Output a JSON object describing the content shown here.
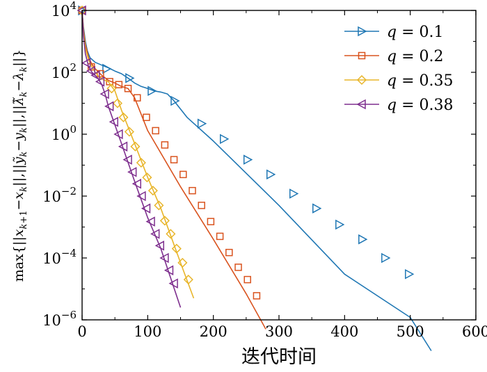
{
  "chart_data": {
    "type": "line",
    "xlabel": "迭代时间",
    "ylabel": "max{||x_{k+1}−x_k||,||ỹ_k−y_k||,||λ̃_k−λ_k||}",
    "xlim": [
      0,
      600
    ],
    "ylim_log10": [
      -6,
      4
    ],
    "yscale": "log",
    "x_ticks": [
      0,
      100,
      200,
      300,
      400,
      500,
      600
    ],
    "y_ticks": [
      {
        "base": "10",
        "exp": "4",
        "value": 10000
      },
      {
        "base": "10",
        "exp": "2",
        "value": 100
      },
      {
        "base": "10",
        "exp": "0",
        "value": 1
      },
      {
        "base": "10",
        "exp": "−2",
        "value": 0.01
      },
      {
        "base": "10",
        "exp": "−4",
        "value": 0.0001
      },
      {
        "base": "10",
        "exp": "−6",
        "value": 1e-06
      }
    ],
    "legend_placement": "top-right",
    "series": [
      {
        "name": "q = 0.1",
        "label_var": "q",
        "label_val": "0.1",
        "color": "#1f77b4",
        "marker": "triangle-right",
        "line_x": [
          0,
          2,
          5,
          8,
          12,
          20,
          30,
          40,
          50,
          60,
          70,
          80,
          90,
          100,
          110,
          120,
          130,
          140,
          160,
          200,
          300,
          400,
          500,
          532
        ],
        "line_y": [
          10000,
          3000,
          1000,
          500,
          300,
          210,
          170,
          140,
          110,
          90,
          65,
          45,
          35,
          30,
          25,
          23,
          20,
          12,
          3.5,
          0.6,
          0.005,
          3e-05,
          1.2e-06,
          1e-07
        ],
        "marker_x": [
          0,
          37,
          72,
          106,
          141,
          182,
          216,
          252,
          287,
          322,
          357,
          392,
          427,
          462,
          498
        ],
        "marker_y": [
          10000,
          130,
          65,
          25,
          12,
          2.2,
          0.7,
          0.15,
          0.05,
          0.012,
          0.004,
          0.0012,
          0.0004,
          0.0001,
          3e-05
        ]
      },
      {
        "name": "q = 0.2",
        "label_var": "q",
        "label_val": "0.2",
        "color": "#d9531e",
        "marker": "square",
        "line_x": [
          0,
          2,
          5,
          10,
          15,
          20,
          30,
          40,
          50,
          60,
          70,
          80,
          100,
          150,
          200,
          250,
          280
        ],
        "line_y": [
          10000,
          2500,
          800,
          300,
          180,
          130,
          80,
          55,
          45,
          35,
          30,
          15,
          1.3,
          0.02,
          0.0004,
          7e-06,
          5e-07
        ],
        "marker_x": [
          0,
          14,
          28,
          42,
          56,
          70,
          84,
          98,
          112,
          126,
          140,
          154,
          168,
          182,
          196,
          210,
          224,
          238,
          252,
          266
        ],
        "marker_y": [
          10000,
          150,
          90,
          50,
          40,
          30,
          15,
          3.5,
          1.3,
          0.45,
          0.15,
          0.05,
          0.015,
          0.005,
          0.0015,
          0.0005,
          0.00015,
          5e-05,
          2e-05,
          6e-06
        ]
      },
      {
        "name": "q = 0.35",
        "label_var": "q",
        "label_val": "0.35",
        "color": "#e8b52a",
        "marker": "diamond",
        "line_x": [
          0,
          2,
          5,
          10,
          15,
          20,
          25,
          30,
          40,
          50,
          60,
          80,
          100,
          120,
          150,
          170
        ],
        "line_y": [
          10000,
          2000,
          600,
          250,
          150,
          100,
          75,
          60,
          50,
          25,
          6,
          0.5,
          0.04,
          0.004,
          7e-05,
          5e-06
        ],
        "marker_x": [
          0,
          45,
          54,
          63,
          72,
          81,
          90,
          99,
          108,
          117,
          126,
          135,
          144,
          153,
          162
        ],
        "marker_y": [
          10000,
          30,
          10,
          3.5,
          1.2,
          0.4,
          0.12,
          0.04,
          0.015,
          0.005,
          0.0016,
          0.0006,
          0.0002,
          7e-05,
          2e-05
        ]
      },
      {
        "name": "q = 0.38",
        "label_var": "q",
        "label_val": "0.38",
        "color": "#7e2f8e",
        "marker": "triangle-left",
        "line_x": [
          0,
          2,
          5,
          10,
          15,
          20,
          25,
          30,
          35,
          40,
          60,
          80,
          100,
          120,
          150
        ],
        "line_y": [
          10000,
          1500,
          400,
          150,
          100,
          80,
          60,
          40,
          20,
          8,
          0.5,
          0.03,
          0.002,
          0.0002,
          2.5e-06
        ],
        "marker_x": [
          0,
          7,
          14,
          21,
          28,
          35,
          42,
          49,
          56,
          63,
          70,
          77,
          84,
          91,
          98,
          105,
          112,
          119,
          126,
          133,
          140
        ],
        "marker_y": [
          10000,
          200,
          110,
          80,
          50,
          20,
          8,
          2.5,
          1,
          0.4,
          0.15,
          0.06,
          0.025,
          0.01,
          0.004,
          0.0015,
          0.0006,
          0.00025,
          0.0001,
          4e-05,
          1.5e-05
        ]
      }
    ]
  }
}
